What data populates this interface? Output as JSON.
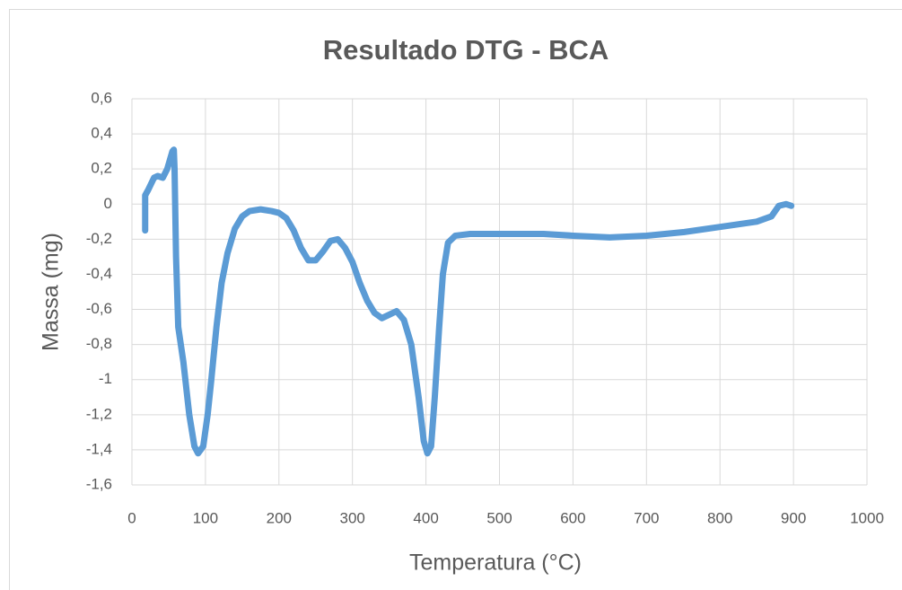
{
  "chart_data": {
    "type": "line",
    "title": "Resultado DTG - BCA",
    "x_label": "Temperatura (°C)",
    "y_label": "Massa (mg)",
    "xlim": [
      0,
      1000
    ],
    "xticks": [
      0,
      100,
      200,
      300,
      400,
      500,
      600,
      700,
      800,
      900,
      1000
    ],
    "ylim": [
      -1.6,
      0.6
    ],
    "yticks": [
      {
        "value": -1.6,
        "label": "-1,6"
      },
      {
        "value": -1.4,
        "label": "-1,4"
      },
      {
        "value": -1.2,
        "label": "-1,2"
      },
      -1,
      {
        "value": -0.8,
        "label": "-0,8"
      },
      {
        "value": -0.6,
        "label": "-0,6"
      },
      {
        "value": -0.4,
        "label": "-0,4"
      },
      {
        "value": -0.2,
        "label": "-0,2"
      },
      0,
      {
        "value": 0.2,
        "label": "0,2"
      },
      {
        "value": 0.4,
        "label": "0,4"
      },
      {
        "value": 0.6,
        "label": "0,6"
      }
    ],
    "grid": true,
    "series": [
      {
        "color": "#5b9bd5",
        "x": [
          18,
          18,
          22,
          30,
          35,
          42,
          48,
          55,
          57,
          58,
          60,
          63,
          70,
          78,
          85,
          90,
          97,
          103,
          108,
          115,
          122,
          130,
          140,
          150,
          160,
          175,
          190,
          200,
          210,
          220,
          230,
          240,
          250,
          260,
          270,
          280,
          290,
          300,
          310,
          320,
          330,
          340,
          350,
          360,
          370,
          380,
          390,
          397,
          402,
          407,
          412,
          418,
          423,
          430,
          440,
          460,
          500,
          560,
          600,
          650,
          700,
          750,
          800,
          850,
          870,
          880,
          890,
          897
        ],
        "values": [
          -0.15,
          0.05,
          0.08,
          0.15,
          0.16,
          0.15,
          0.2,
          0.3,
          0.31,
          0.2,
          -0.3,
          -0.7,
          -0.9,
          -1.2,
          -1.38,
          -1.42,
          -1.38,
          -1.2,
          -1.0,
          -0.7,
          -0.45,
          -0.28,
          -0.14,
          -0.07,
          -0.04,
          -0.03,
          -0.04,
          -0.05,
          -0.08,
          -0.15,
          -0.25,
          -0.32,
          -0.32,
          -0.27,
          -0.21,
          -0.2,
          -0.25,
          -0.33,
          -0.45,
          -0.55,
          -0.62,
          -0.65,
          -0.63,
          -0.61,
          -0.66,
          -0.8,
          -1.1,
          -1.35,
          -1.42,
          -1.38,
          -1.1,
          -0.7,
          -0.4,
          -0.22,
          -0.18,
          -0.17,
          -0.17,
          -0.17,
          -0.18,
          -0.19,
          -0.18,
          -0.16,
          -0.13,
          -0.1,
          -0.07,
          -0.01,
          0,
          -0.01
        ]
      }
    ]
  }
}
